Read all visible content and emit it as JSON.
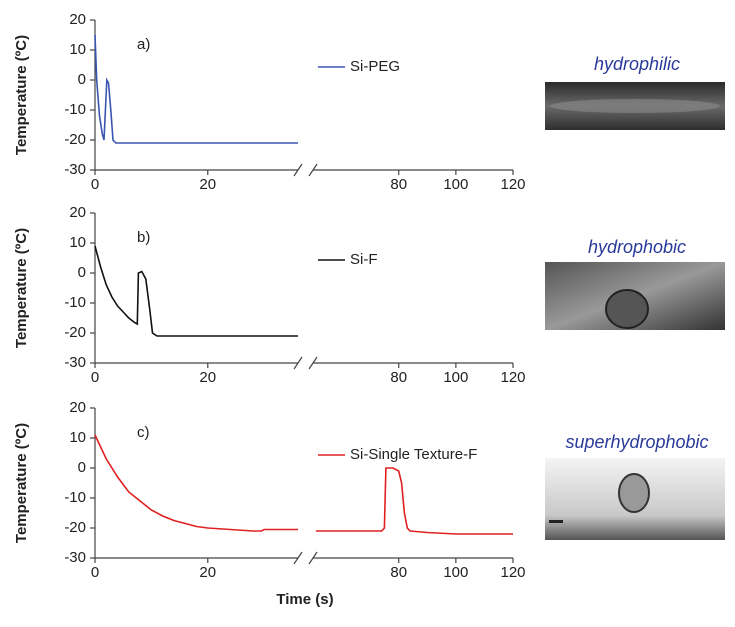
{
  "chart_data": [
    {
      "type": "line",
      "panel_label": "a)",
      "ylabel": "Temperature (ºC)",
      "image_label": "hydrophilic",
      "xlim": [
        0,
        120
      ],
      "x_break": [
        36,
        50
      ],
      "xticks": [
        0,
        20,
        80,
        100,
        120
      ],
      "ylim": [
        -30,
        20
      ],
      "yticks": [
        -30,
        -20,
        -10,
        0,
        10,
        20
      ],
      "x": [
        0,
        0.3,
        0.8,
        1.3,
        1.6,
        1.9,
        2.1,
        2.4,
        2.8,
        3.2,
        3.7,
        5,
        10,
        20,
        30,
        36
      ],
      "series": [
        {
          "name": "Si-PEG",
          "color": "#3a55b0",
          "values": [
            15,
            0,
            -12,
            -18,
            -20,
            -8,
            0,
            -1,
            -10,
            -20,
            -21,
            -21,
            -21,
            -21,
            -21,
            -21
          ]
        }
      ]
    },
    {
      "type": "line",
      "panel_label": "b)",
      "ylabel": "Temperature (ºC)",
      "image_label": "hydrophobic",
      "xlim": [
        0,
        120
      ],
      "x_break": [
        36,
        50
      ],
      "xticks": [
        0,
        20,
        80,
        100,
        120
      ],
      "ylim": [
        -30,
        20
      ],
      "yticks": [
        -30,
        -20,
        -10,
        0,
        10,
        20
      ],
      "x": [
        0,
        1,
        2,
        3,
        4,
        5,
        6,
        7,
        7.5,
        7.7,
        8.3,
        9,
        9.7,
        10.2,
        11,
        15,
        25,
        36
      ],
      "series": [
        {
          "name": "Si-F",
          "color": "#111111",
          "values": [
            9,
            2,
            -4,
            -8,
            -11,
            -13,
            -15,
            -16.5,
            -17,
            0,
            0.5,
            -2,
            -12,
            -20,
            -21,
            -21,
            -21,
            -21
          ]
        }
      ]
    },
    {
      "type": "line",
      "panel_label": "c)",
      "ylabel": "Temperature (ºC)",
      "xlabel": "Time (s)",
      "image_label": "superhydrophobic",
      "xlim": [
        0,
        120
      ],
      "x_break": [
        36,
        50
      ],
      "xticks": [
        0,
        20,
        80,
        100,
        120
      ],
      "ylim": [
        -30,
        20
      ],
      "yticks": [
        -30,
        -20,
        -10,
        0,
        10,
        20
      ],
      "x": [
        0,
        2,
        4,
        6,
        8,
        10,
        12,
        14,
        16,
        18,
        20,
        24,
        28,
        29.5,
        30,
        36,
        null,
        51,
        60,
        74,
        75,
        75.5,
        78,
        80,
        81,
        82,
        83,
        84,
        90,
        100,
        110,
        120
      ],
      "series": [
        {
          "name": "Si-Single Texture-F",
          "color": "#e02020",
          "values": [
            11,
            3,
            -3,
            -8,
            -11,
            -14,
            -16,
            -17.5,
            -18.5,
            -19.5,
            -20,
            -20.5,
            -21,
            -21,
            -20.5,
            -20.5,
            null,
            -21,
            -21,
            -21,
            -20,
            0,
            0,
            -1,
            -5,
            -15,
            -20,
            -21,
            -21.5,
            -22,
            -22,
            -22
          ]
        }
      ]
    }
  ]
}
